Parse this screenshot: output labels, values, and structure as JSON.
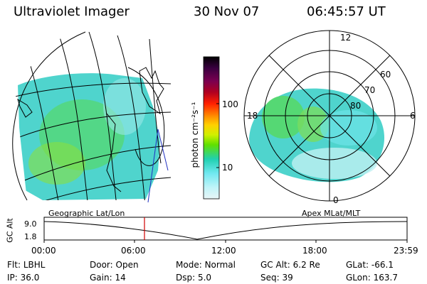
{
  "header": {
    "instrument": "Ultraviolet Imager",
    "date": "30 Nov 07",
    "time": "06:45:57 UT"
  },
  "colorbar": {
    "unit_label": "photon cm⁻²s⁻¹",
    "ticks": [
      "100",
      "10"
    ],
    "colors": [
      "#000000",
      "#3a0040",
      "#7a0050",
      "#b00020",
      "#ff2000",
      "#ff9000",
      "#ffd000",
      "#d0f000",
      "#60e000",
      "#20d0b0",
      "#70e8f0",
      "#c0f4f8",
      "#e8f6f8"
    ]
  },
  "geographic_map": {
    "label": "Geographic Lat/Lon"
  },
  "polar_map": {
    "label": "Apex MLat/MLT",
    "hour_labels": {
      "top": "12",
      "left": "18",
      "right": "6",
      "bottom": "0"
    },
    "lat_labels": [
      "60",
      "70",
      "80"
    ]
  },
  "altitude_plot": {
    "axis_label": "GC Alt",
    "y_ticks": [
      "9.0",
      "1.8"
    ],
    "x_ticks": [
      "00:00",
      "06:00",
      "12:00",
      "18:00",
      "23:59"
    ],
    "marker_color": "#d00000"
  },
  "status": {
    "row1": [
      {
        "label": "Flt:",
        "value": "LBHL"
      },
      {
        "label": "Door:",
        "value": "Open"
      },
      {
        "label": "Mode:",
        "value": "Normal"
      },
      {
        "label": "GC Alt:",
        "value": "6.2 Re"
      },
      {
        "label": "GLat:",
        "value": "-66.1"
      }
    ],
    "row2": [
      {
        "label": "IP:",
        "value": "36.0"
      },
      {
        "label": "Gain:",
        "value": "14"
      },
      {
        "label": "Dsp:",
        "value": "5.0"
      },
      {
        "label": "Seq:",
        "value": "39"
      },
      {
        "label": "GLon:",
        "value": "163.7"
      }
    ]
  }
}
